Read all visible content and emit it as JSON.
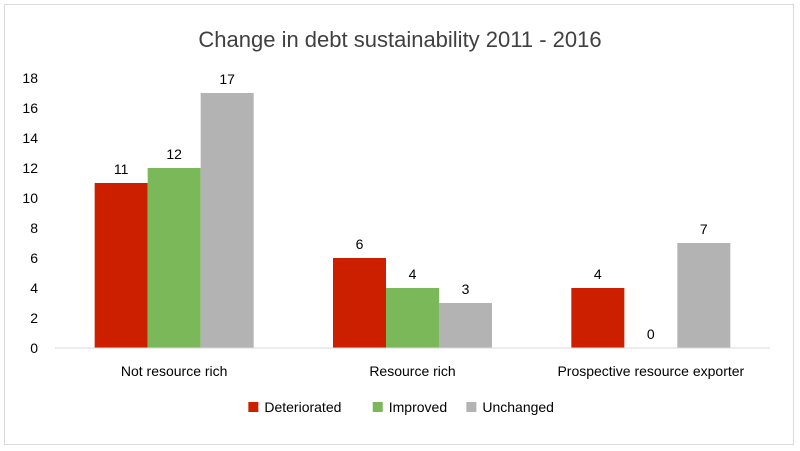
{
  "chart_data": {
    "type": "bar",
    "title": "Change in debt sustainability 2011 - 2016",
    "xlabel": "",
    "ylabel": "",
    "categories": [
      "Not resource rich",
      "Resource rich",
      "Prospective resource exporter"
    ],
    "series": [
      {
        "name": "Deteriorated",
        "color": "#cc1f00",
        "values": [
          11,
          6,
          4
        ]
      },
      {
        "name": "Improved",
        "color": "#7bb85a",
        "values": [
          12,
          4,
          0
        ]
      },
      {
        "name": "Unchanged",
        "color": "#b3b3b3",
        "values": [
          17,
          3,
          7
        ]
      }
    ],
    "ylim": [
      0,
      18
    ],
    "yticks": [
      0,
      2,
      4,
      6,
      8,
      10,
      12,
      14,
      16,
      18
    ],
    "grid": false,
    "legend": "bottom",
    "data_labels": true
  }
}
